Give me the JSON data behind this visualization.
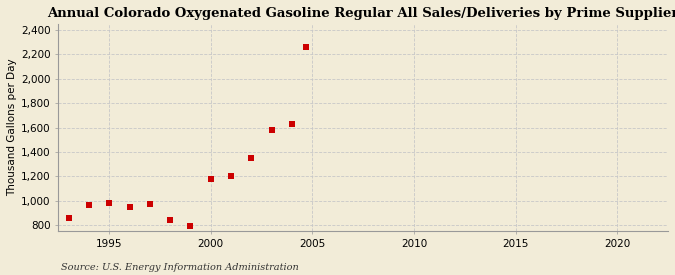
{
  "title": "Annual Colorado Oxygenated Gasoline Regular All Sales/Deliveries by Prime Supplier",
  "ylabel": "Thousand Gallons per Day",
  "source": "Source: U.S. Energy Information Administration",
  "x_values": [
    1993,
    1994,
    1995,
    1996,
    1997,
    1998,
    1999,
    2000,
    2001,
    2002,
    2003,
    2004,
    2004.7
  ],
  "y_values": [
    855,
    965,
    980,
    950,
    970,
    840,
    795,
    1180,
    1200,
    1350,
    1580,
    1625,
    2260
  ],
  "xlim": [
    1992.5,
    2022.5
  ],
  "ylim": [
    750,
    2450
  ],
  "yticks": [
    800,
    1000,
    1200,
    1400,
    1600,
    1800,
    2000,
    2200,
    2400
  ],
  "xticks": [
    1995,
    2000,
    2005,
    2010,
    2015,
    2020
  ],
  "marker_color": "#CC0000",
  "marker_size": 18,
  "bg_color": "#F2ECD8",
  "grid_color": "#C8C8C8",
  "title_fontsize": 9.5,
  "label_fontsize": 7.5,
  "tick_fontsize": 7.5,
  "source_fontsize": 7
}
